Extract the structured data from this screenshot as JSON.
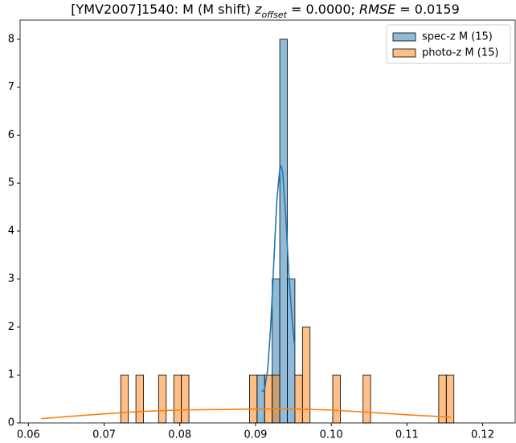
{
  "chart_data": {
    "type": "histogram",
    "title": [
      {
        "text": "[YMV2007]1540: M (M shift) "
      },
      {
        "text": "z",
        "italic": true
      },
      {
        "text": "offset",
        "italic": true,
        "sub": true
      },
      {
        "text": " = 0.0000; "
      },
      {
        "text": "RMSE",
        "italic": true
      },
      {
        "text": " = 0.0159"
      }
    ],
    "xlim": [
      0.0589,
      0.1243
    ],
    "ylim": [
      0,
      8.4
    ],
    "xticks": [
      0.06,
      0.07,
      0.08,
      0.09,
      {
        "value": 0.1,
        "label": "0.10"
      },
      0.11,
      0.12
    ],
    "yticks": [
      0,
      1,
      2,
      3,
      4,
      5,
      6,
      7,
      8
    ],
    "legend": "upper right",
    "bar_opacity": 0.5,
    "series": [
      {
        "name": "spec-z M (15)",
        "color": "#1f77b4",
        "bins": [
          0.0902,
          0.0912,
          0.0922,
          0.0932,
          0.0942,
          0.0952
        ],
        "values": [
          1,
          0,
          3,
          8,
          3
        ],
        "kde_x": [
          0.0908,
          0.0912,
          0.0916,
          0.092,
          0.0924,
          0.0928,
          0.0932,
          0.0934,
          0.0936,
          0.094,
          0.0944,
          0.0948,
          0.0952
        ],
        "kde_values": [
          0.65,
          0.7,
          1.1,
          2.0,
          3.3,
          4.6,
          5.3,
          5.35,
          5.2,
          4.3,
          3.1,
          2.2,
          1.55
        ]
      },
      {
        "name": "photo-z M (15)",
        "color": "#ff7f0e",
        "bins": [
          0.0722,
          0.0732,
          0.0742,
          0.0752,
          0.0762,
          0.0772,
          0.0782,
          0.0792,
          0.0802,
          0.0812,
          0.0822,
          0.0832,
          0.0842,
          0.0852,
          0.0862,
          0.0872,
          0.0882,
          0.0892,
          0.0902,
          0.0912,
          0.0922,
          0.0932,
          0.0942,
          0.0952,
          0.0962,
          0.0972,
          0.0982,
          0.0992,
          0.1002,
          0.1012,
          0.1022,
          0.1032,
          0.1042,
          0.1052,
          0.1062,
          0.1072,
          0.1082,
          0.1092,
          0.1102,
          0.1112,
          0.1122,
          0.1132,
          0.1142,
          0.1152,
          0.1162
        ],
        "values": [
          1,
          0,
          1,
          0,
          0,
          1,
          0,
          1,
          1,
          0,
          0,
          0,
          0,
          0,
          0,
          0,
          0,
          1,
          0,
          1,
          1,
          0,
          0,
          1,
          2,
          0,
          0,
          0,
          1,
          0,
          0,
          0,
          1,
          0,
          0,
          0,
          0,
          0,
          0,
          0,
          0,
          0,
          1,
          1
        ],
        "kde_x": [
          0.0617,
          0.065,
          0.07,
          0.075,
          0.08,
          0.085,
          0.09,
          0.095,
          0.1,
          0.105,
          0.11,
          0.1158
        ],
        "kde_values": [
          0.09,
          0.13,
          0.19,
          0.24,
          0.27,
          0.28,
          0.29,
          0.29,
          0.27,
          0.22,
          0.17,
          0.12
        ]
      }
    ]
  }
}
